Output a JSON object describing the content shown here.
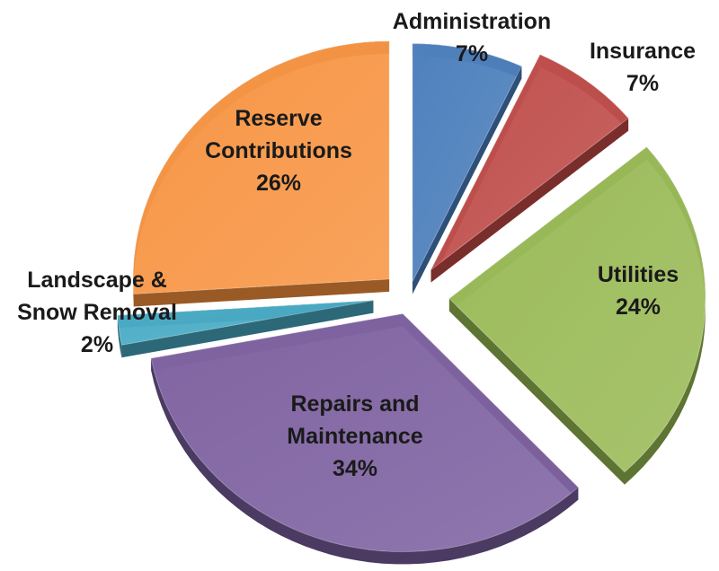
{
  "chart_data": {
    "type": "pie",
    "title": "",
    "slices": [
      {
        "label_lines": [
          "Administration"
        ],
        "percent_label": "7%",
        "value": 7,
        "color": "#4F81BD",
        "side": "#2E4F78"
      },
      {
        "label_lines": [
          "Insurance"
        ],
        "percent_label": "7%",
        "value": 7,
        "color": "#C0504D",
        "side": "#7A2E2C"
      },
      {
        "label_lines": [
          "Utilities"
        ],
        "percent_label": "24%",
        "value": 24,
        "color": "#9BBB59",
        "side": "#5E7432"
      },
      {
        "label_lines": [
          "Repairs and",
          "Maintenance"
        ],
        "percent_label": "34%",
        "value": 34,
        "color": "#8064A2",
        "side": "#4B3A62"
      },
      {
        "label_lines": [
          "Landscape &",
          "Snow Removal"
        ],
        "percent_label": "2%",
        "value": 2,
        "color": "#4BACC6",
        "side": "#2C6878"
      },
      {
        "label_lines": [
          "Reserve",
          "Contributions"
        ],
        "percent_label": "26%",
        "value": 26,
        "color": "#F79646",
        "side": "#9A5A25"
      }
    ]
  }
}
